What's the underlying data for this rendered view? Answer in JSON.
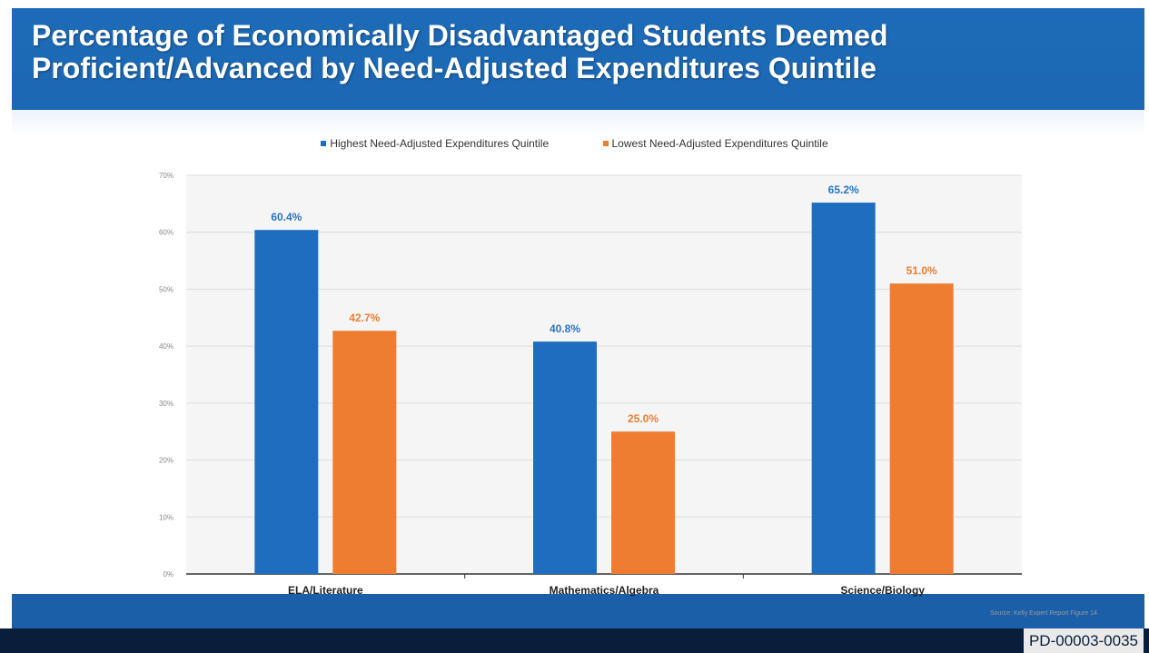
{
  "slide": {
    "title_line1": "Percentage of Economically Disadvantaged Students Deemed",
    "title_line2": "Proficient/Advanced by Need-Adjusted Expenditures Quintile",
    "source_note": "Source: Kelly Expert Report Figure 14",
    "doc_id": "PD-00003-0035"
  },
  "colors": {
    "highest": "#1f6dbf",
    "lowest": "#ee7d31",
    "highest_label": "#2a74c4",
    "lowest_label": "#ee7d31"
  },
  "chart_data": {
    "type": "bar",
    "categories": [
      "ELA/Literature",
      "Mathematics/Algebra",
      "Science/Biology"
    ],
    "series": [
      {
        "name": "Highest Need-Adjusted Expenditures Quintile",
        "values": [
          60.4,
          40.8,
          65.2
        ],
        "labels": [
          "60.4%",
          "40.8%",
          "65.2%"
        ]
      },
      {
        "name": "Lowest Need-Adjusted Expenditures Quintile",
        "values": [
          42.7,
          25.0,
          51.0
        ],
        "labels": [
          "42.7%",
          "25.0%",
          "51.0%"
        ]
      }
    ],
    "ylim": [
      0,
      70
    ],
    "yticks": [
      0,
      10,
      20,
      30,
      40,
      50,
      60,
      70
    ],
    "ytick_labels": [
      "0%",
      "10%",
      "20%",
      "30%",
      "40%",
      "50%",
      "60%",
      "70%"
    ],
    "grid": true,
    "legend_position": "top"
  }
}
